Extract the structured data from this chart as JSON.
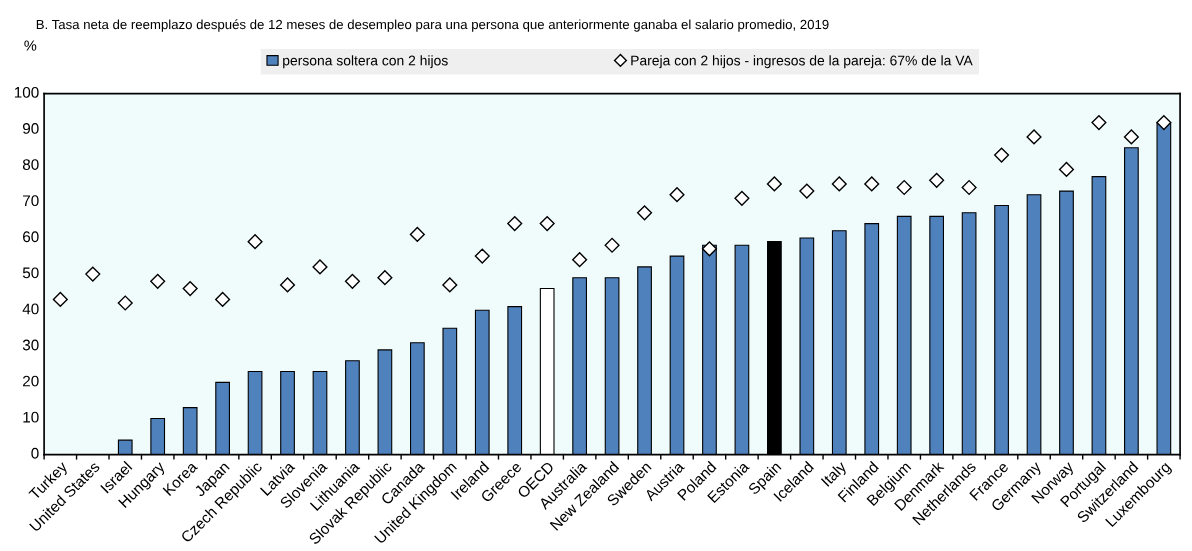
{
  "chart_data": {
    "type": "bar",
    "title": "B. Tasa neta de reemplazo después de 12 meses de desempleo para una persona que anteriormente ganaba el salario promedio, 2019",
    "ylabel": "%",
    "categories": [
      "Turkey",
      "United States",
      "Israel",
      "Hungary",
      "Korea",
      "Japan",
      "Czech Republic",
      "Latvia",
      "Slovenia",
      "Lithuania",
      "Slovak Republic",
      "Canada",
      "United Kingdom",
      "Ireland",
      "Greece",
      "OECD",
      "Australia",
      "New Zealand",
      "Sweden",
      "Austria",
      "Poland",
      "Estonia",
      "Spain",
      "Iceland",
      "Italy",
      "Finland",
      "Belgium",
      "Denmark",
      "Netherlands",
      "France",
      "Germany",
      "Norway",
      "Portugal",
      "Switzerland",
      "Luxembourg"
    ],
    "series": [
      {
        "name": "persona soltera con 2 hijos",
        "color": "#4f81bd",
        "colors": [
          "#4f81bd",
          "#4f81bd",
          "#4f81bd",
          "#4f81bd",
          "#4f81bd",
          "#4f81bd",
          "#4f81bd",
          "#4f81bd",
          "#4f81bd",
          "#4f81bd",
          "#4f81bd",
          "#4f81bd",
          "#4f81bd",
          "#4f81bd",
          "#4f81bd",
          "#ffffff",
          "#4f81bd",
          "#4f81bd",
          "#4f81bd",
          "#4f81bd",
          "#4f81bd",
          "#4f81bd",
          "#000000",
          "#4f81bd",
          "#4f81bd",
          "#4f81bd",
          "#4f81bd",
          "#4f81bd",
          "#4f81bd",
          "#4f81bd",
          "#4f81bd",
          "#4f81bd",
          "#4f81bd",
          "#4f81bd",
          "#4f81bd"
        ],
        "values": [
          null,
          null,
          4,
          10,
          13,
          20,
          23,
          23,
          23,
          26,
          29,
          31,
          35,
          40,
          41,
          46,
          49,
          49,
          52,
          55,
          58,
          58,
          59,
          60,
          62,
          64,
          66,
          66,
          67,
          69,
          72,
          73,
          77,
          85,
          92
        ]
      },
      {
        "name": "Pareja con 2 hijos - ingresos de la pareja: 67% de la VA",
        "type": "scatter",
        "marker": "diamond",
        "color": "#ffffff",
        "values": [
          43,
          50,
          42,
          48,
          46,
          43,
          59,
          47,
          52,
          48,
          49,
          61,
          47,
          55,
          64,
          64,
          54,
          58,
          67,
          72,
          57,
          71,
          75,
          73,
          75,
          75,
          74,
          76,
          74,
          83,
          88,
          79,
          92,
          88,
          92
        ]
      }
    ],
    "ylim": [
      0,
      100
    ],
    "yticks": [
      0,
      10,
      20,
      30,
      40,
      50,
      60,
      70,
      80,
      90,
      100
    ],
    "grid": false,
    "legend": "top"
  }
}
